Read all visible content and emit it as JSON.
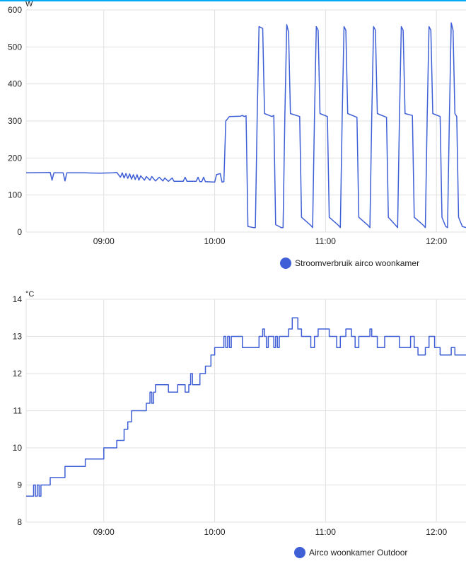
{
  "accent_color": "#03a9f4",
  "chart_data": [
    {
      "type": "line",
      "ylabel": "W",
      "ylim": [
        0,
        600
      ],
      "yticks": [
        "0",
        "100",
        "200",
        "300",
        "400",
        "500",
        "600"
      ],
      "x_range": [
        "08:18",
        "12:16"
      ],
      "xticks": [
        "09:00",
        "10:00",
        "11:00",
        "12:00"
      ],
      "grid": true,
      "legend_position": "bottom",
      "series": [
        {
          "name": "Stroomverbruik airco woonkamer",
          "color": "#3f5fd6",
          "points": [
            [
              "08:18",
              160
            ],
            [
              "08:31",
              161
            ],
            [
              "08:32",
              140
            ],
            [
              "08:33",
              160
            ],
            [
              "08:38",
              160
            ],
            [
              "08:39",
              138
            ],
            [
              "08:40",
              160
            ],
            [
              "08:50",
              160
            ],
            [
              "08:58",
              159
            ],
            [
              "09:05",
              160
            ],
            [
              "09:07",
              161
            ],
            [
              "09:09",
              148
            ],
            [
              "09:10",
              160
            ],
            [
              "09:11",
              146
            ],
            [
              "09:12",
              158
            ],
            [
              "09:13",
              145
            ],
            [
              "09:14",
              157
            ],
            [
              "09:15",
              143
            ],
            [
              "09:16",
              155
            ],
            [
              "09:17",
              142
            ],
            [
              "09:18",
              155
            ],
            [
              "09:19",
              140
            ],
            [
              "09:20",
              152
            ],
            [
              "09:22",
              140
            ],
            [
              "09:23",
              150
            ],
            [
              "09:25",
              140
            ],
            [
              "09:26",
              150
            ],
            [
              "09:28",
              138
            ],
            [
              "09:30",
              148
            ],
            [
              "09:32",
              138
            ],
            [
              "09:33",
              146
            ],
            [
              "09:35",
              137
            ],
            [
              "09:37",
              146
            ],
            [
              "09:38",
              137
            ],
            [
              "09:43",
              137
            ],
            [
              "09:44",
              148
            ],
            [
              "09:45",
              137
            ],
            [
              "09:50",
              137
            ],
            [
              "09:51",
              148
            ],
            [
              "09:52",
              136
            ],
            [
              "09:53",
              136
            ],
            [
              "09:54",
              148
            ],
            [
              "09:55",
              136
            ],
            [
              "10:00",
              135
            ],
            [
              "10:01",
              155
            ],
            [
              "10:03",
              158
            ],
            [
              "10:04",
              135
            ],
            [
              "10:05",
              136
            ],
            [
              "10:06",
              300
            ],
            [
              "10:08",
              312
            ],
            [
              "10:14",
              313
            ],
            [
              "10:15",
              315
            ],
            [
              "10:16",
              312
            ],
            [
              "10:17",
              314
            ],
            [
              "10:18",
              15
            ],
            [
              "10:21",
              12
            ],
            [
              "10:22",
              12
            ],
            [
              "10:23",
              310
            ],
            [
              "10:24",
              555
            ],
            [
              "10:26",
              550
            ],
            [
              "10:27",
              320
            ],
            [
              "10:31",
              312
            ],
            [
              "10:32",
              315
            ],
            [
              "10:33",
              20
            ],
            [
              "10:36",
              12
            ],
            [
              "10:37",
              12
            ],
            [
              "10:38",
              320
            ],
            [
              "10:39",
              560
            ],
            [
              "10:40",
              540
            ],
            [
              "10:41",
              320
            ],
            [
              "10:46",
              312
            ],
            [
              "10:47",
              40
            ],
            [
              "10:52",
              18
            ],
            [
              "10:53",
              12
            ],
            [
              "10:54",
              310
            ],
            [
              "10:55",
              555
            ],
            [
              "10:56",
              545
            ],
            [
              "10:57",
              320
            ],
            [
              "11:01",
              312
            ],
            [
              "11:02",
              40
            ],
            [
              "11:07",
              18
            ],
            [
              "11:08",
              12
            ],
            [
              "11:09",
              310
            ],
            [
              "11:10",
              555
            ],
            [
              "11:11",
              545
            ],
            [
              "11:12",
              320
            ],
            [
              "11:17",
              310
            ],
            [
              "11:18",
              40
            ],
            [
              "11:23",
              18
            ],
            [
              "11:24",
              12
            ],
            [
              "11:25",
              310
            ],
            [
              "11:26",
              555
            ],
            [
              "11:27",
              545
            ],
            [
              "11:28",
              320
            ],
            [
              "11:33",
              310
            ],
            [
              "11:34",
              40
            ],
            [
              "11:38",
              18
            ],
            [
              "11:39",
              12
            ],
            [
              "11:40",
              310
            ],
            [
              "11:41",
              555
            ],
            [
              "11:42",
              545
            ],
            [
              "11:43",
              320
            ],
            [
              "11:47",
              315
            ],
            [
              "11:48",
              40
            ],
            [
              "11:53",
              18
            ],
            [
              "11:54",
              12
            ],
            [
              "11:55",
              310
            ],
            [
              "11:56",
              555
            ],
            [
              "11:57",
              545
            ],
            [
              "11:58",
              320
            ],
            [
              "12:02",
              312
            ],
            [
              "12:03",
              40
            ],
            [
              "12:05",
              15
            ],
            [
              "12:06",
              12
            ],
            [
              "12:07",
              310
            ],
            [
              "12:08",
              565
            ],
            [
              "12:09",
              545
            ],
            [
              "12:10",
              320
            ],
            [
              "12:11",
              312
            ],
            [
              "12:12",
              40
            ],
            [
              "12:14",
              15
            ],
            [
              "12:16",
              12
            ]
          ]
        }
      ]
    },
    {
      "type": "line",
      "ylabel": "°C",
      "ylim": [
        8,
        14
      ],
      "yticks": [
        "8",
        "9",
        "10",
        "11",
        "12",
        "13",
        "14"
      ],
      "x_range": [
        "08:18",
        "12:16"
      ],
      "xticks": [
        "09:00",
        "10:00",
        "11:00",
        "12:00"
      ],
      "grid": true,
      "step": true,
      "legend_position": "bottom",
      "series": [
        {
          "name": "Airco woonkamer Outdoor",
          "color": "#3f5fd6",
          "points": [
            [
              "08:18",
              8.7
            ],
            [
              "08:22",
              9
            ],
            [
              "08:23",
              8.7
            ],
            [
              "08:24",
              9
            ],
            [
              "08:25",
              8.7
            ],
            [
              "08:26",
              9
            ],
            [
              "08:31",
              9.2
            ],
            [
              "08:39",
              9.5
            ],
            [
              "08:50",
              9.7
            ],
            [
              "09:00",
              10
            ],
            [
              "09:07",
              10.2
            ],
            [
              "09:11",
              10.5
            ],
            [
              "09:13",
              10.7
            ],
            [
              "09:15",
              11
            ],
            [
              "09:23",
              11.2
            ],
            [
              "09:25",
              11.5
            ],
            [
              "09:26",
              11.2
            ],
            [
              "09:27",
              11.5
            ],
            [
              "09:28",
              11.7
            ],
            [
              "09:35",
              11.5
            ],
            [
              "09:40",
              11.7
            ],
            [
              "09:44",
              11.5
            ],
            [
              "09:46",
              11.7
            ],
            [
              "09:47",
              12
            ],
            [
              "09:48",
              11.7
            ],
            [
              "09:52",
              12
            ],
            [
              "09:55",
              12.2
            ],
            [
              "09:58",
              12.5
            ],
            [
              "10:00",
              12.7
            ],
            [
              "10:04",
              12.7
            ],
            [
              "10:05",
              13
            ],
            [
              "10:06",
              12.7
            ],
            [
              "10:07",
              13
            ],
            [
              "10:08",
              12.7
            ],
            [
              "10:09",
              13
            ],
            [
              "10:15",
              12.7
            ],
            [
              "10:24",
              13
            ],
            [
              "10:26",
              13.2
            ],
            [
              "10:27",
              13
            ],
            [
              "10:28",
              12.7
            ],
            [
              "10:29",
              13
            ],
            [
              "10:32",
              12.7
            ],
            [
              "10:33",
              13
            ],
            [
              "10:34",
              12.7
            ],
            [
              "10:35",
              13
            ],
            [
              "10:40",
              13.2
            ],
            [
              "10:42",
              13.5
            ],
            [
              "10:45",
              13.2
            ],
            [
              "10:47",
              13
            ],
            [
              "10:52",
              12.7
            ],
            [
              "10:54",
              13
            ],
            [
              "10:56",
              13.2
            ],
            [
              "11:02",
              13
            ],
            [
              "11:06",
              12.7
            ],
            [
              "11:08",
              13
            ],
            [
              "11:11",
              13.2
            ],
            [
              "11:14",
              13
            ],
            [
              "11:16",
              12.7
            ],
            [
              "11:18",
              13
            ],
            [
              "11:24",
              13.2
            ],
            [
              "11:25",
              13
            ],
            [
              "11:28",
              12.7
            ],
            [
              "11:32",
              13
            ],
            [
              "11:40",
              12.7
            ],
            [
              "11:46",
              13
            ],
            [
              "11:48",
              12.7
            ],
            [
              "11:50",
              12.5
            ],
            [
              "11:54",
              12.7
            ],
            [
              "11:56",
              13
            ],
            [
              "11:59",
              12.7
            ],
            [
              "12:02",
              12.5
            ],
            [
              "12:08",
              12.7
            ],
            [
              "12:10",
              12.5
            ],
            [
              "12:16",
              12.5
            ]
          ]
        }
      ]
    }
  ]
}
